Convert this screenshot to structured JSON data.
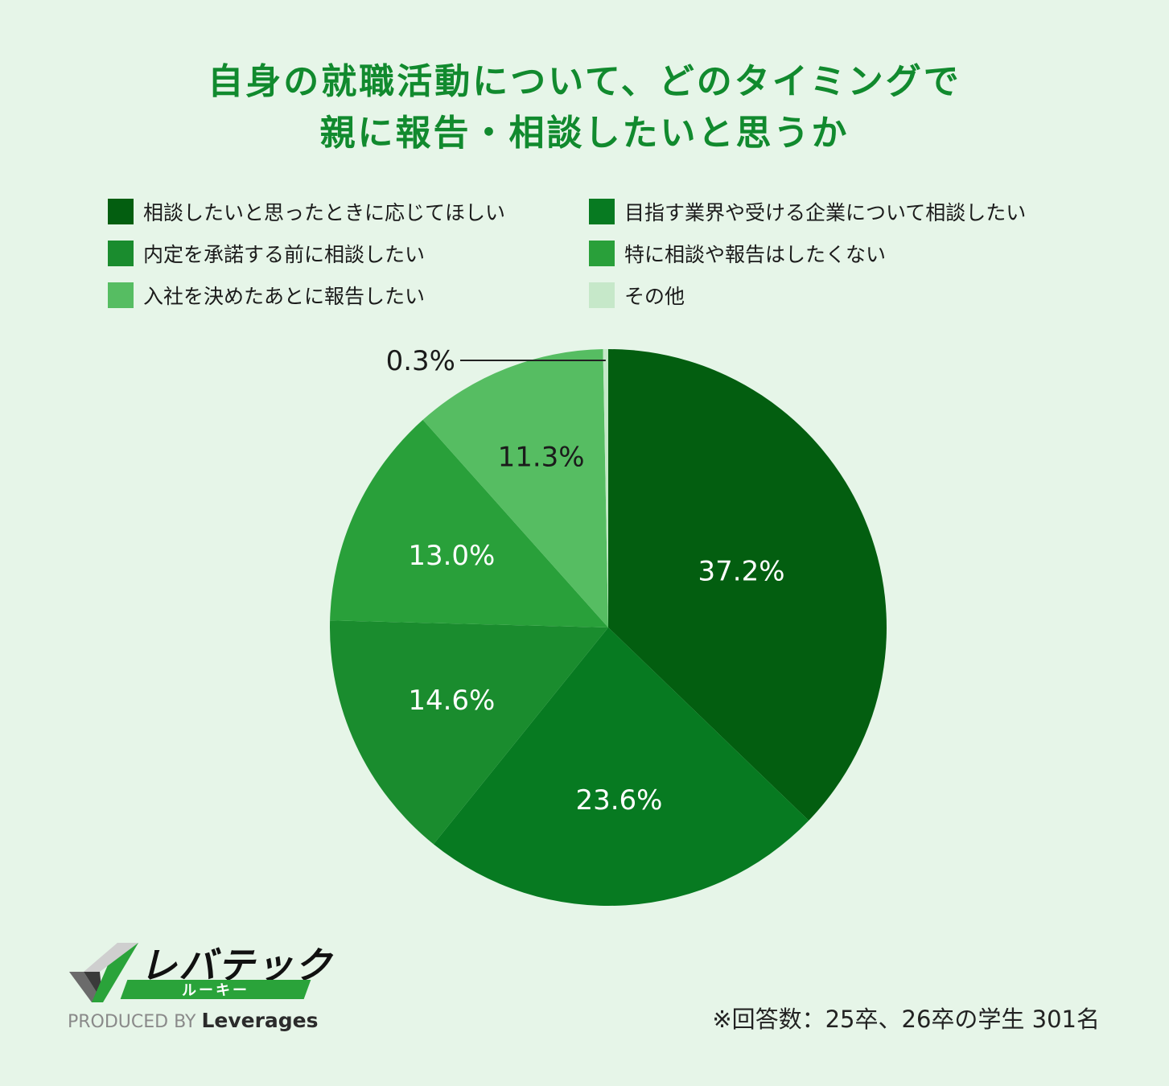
{
  "title_line1": "自身の就職活動について、どのタイミングで",
  "title_line2": "親に報告・相談したいと思うか",
  "footnote": "※回答数：25卒、26卒の学生 301名",
  "brand": {
    "name": "レバテック",
    "sub": "ルーキー",
    "produced_by": "PRODUCED BY",
    "company": "Leverages"
  },
  "chart_data": {
    "type": "pie",
    "unit": "%",
    "slices": [
      {
        "label": "相談したいと思ったときに応じてほしい",
        "value": 37.2,
        "value_label": "37.2%",
        "color": "#035e10"
      },
      {
        "label": "目指す業界や受ける企業について相談したい",
        "value": 23.6,
        "value_label": "23.6%",
        "color": "#077a21"
      },
      {
        "label": "内定を承諾する前に相談したい",
        "value": 14.6,
        "value_label": "14.6%",
        "color": "#1a8c2e"
      },
      {
        "label": "特に相談や報告はしたくない",
        "value": 13.0,
        "value_label": "13.0%",
        "color": "#29a03a"
      },
      {
        "label": "入社を決めたあとに報告したい",
        "value": 11.3,
        "value_label": "11.3%",
        "color": "#56bd62"
      },
      {
        "label": "その他",
        "value": 0.3,
        "value_label": "0.3%",
        "color": "#c6e8c9"
      }
    ],
    "legend_position": "top"
  }
}
